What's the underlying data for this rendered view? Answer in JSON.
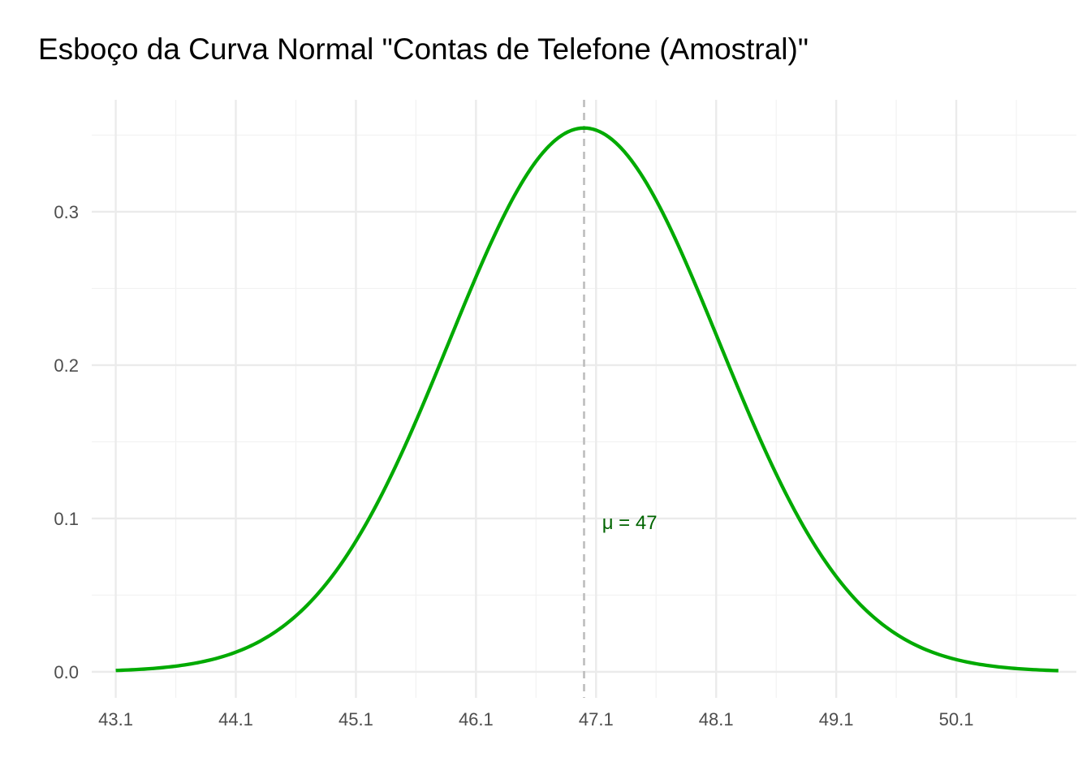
{
  "chart_data": {
    "type": "line",
    "title": "Esboço da Curva Normal \"Contas de Telefone (Amostral)\"",
    "xlabel": "",
    "ylabel": "",
    "distribution": {
      "mean": 47,
      "sd": 1.125
    },
    "xlim": [
      42.9,
      51.1
    ],
    "ylim": [
      -0.017,
      0.373
    ],
    "x_range": [
      43.1,
      50.95
    ],
    "x_ticks": [
      43.1,
      44.1,
      45.1,
      46.1,
      47.1,
      48.1,
      49.1,
      50.1
    ],
    "x_tick_labels": [
      "43.1",
      "44.1",
      "45.1",
      "46.1",
      "47.1",
      "48.1",
      "49.1",
      "50.1"
    ],
    "y_ticks": [
      0.0,
      0.1,
      0.2,
      0.3
    ],
    "y_tick_labels": [
      "0.0",
      "0.1",
      "0.2",
      "0.3"
    ],
    "series": [
      {
        "color": "#00aa00",
        "x": [
          43.1,
          43.6,
          44.1,
          44.6,
          45.1,
          45.6,
          46.1,
          46.6,
          47.0,
          47.1,
          47.6,
          48.1,
          48.6,
          49.1,
          49.6,
          50.1,
          50.6,
          50.95
        ],
        "y": [
          0.0009,
          0.0037,
          0.0128,
          0.0365,
          0.0855,
          0.1632,
          0.257,
          0.3337,
          0.3546,
          0.3531,
          0.3076,
          0.2205,
          0.1308,
          0.0624,
          0.0245,
          0.0079,
          0.0021,
          0.0007
        ]
      }
    ],
    "vertical_line": {
      "x": 47,
      "color": "#bdbdbd",
      "style": "dashed"
    },
    "annotation": {
      "text": "μ = 47",
      "x": 47.15,
      "y": 0.093,
      "color": "#006400"
    },
    "grid": true,
    "legend": "none"
  }
}
